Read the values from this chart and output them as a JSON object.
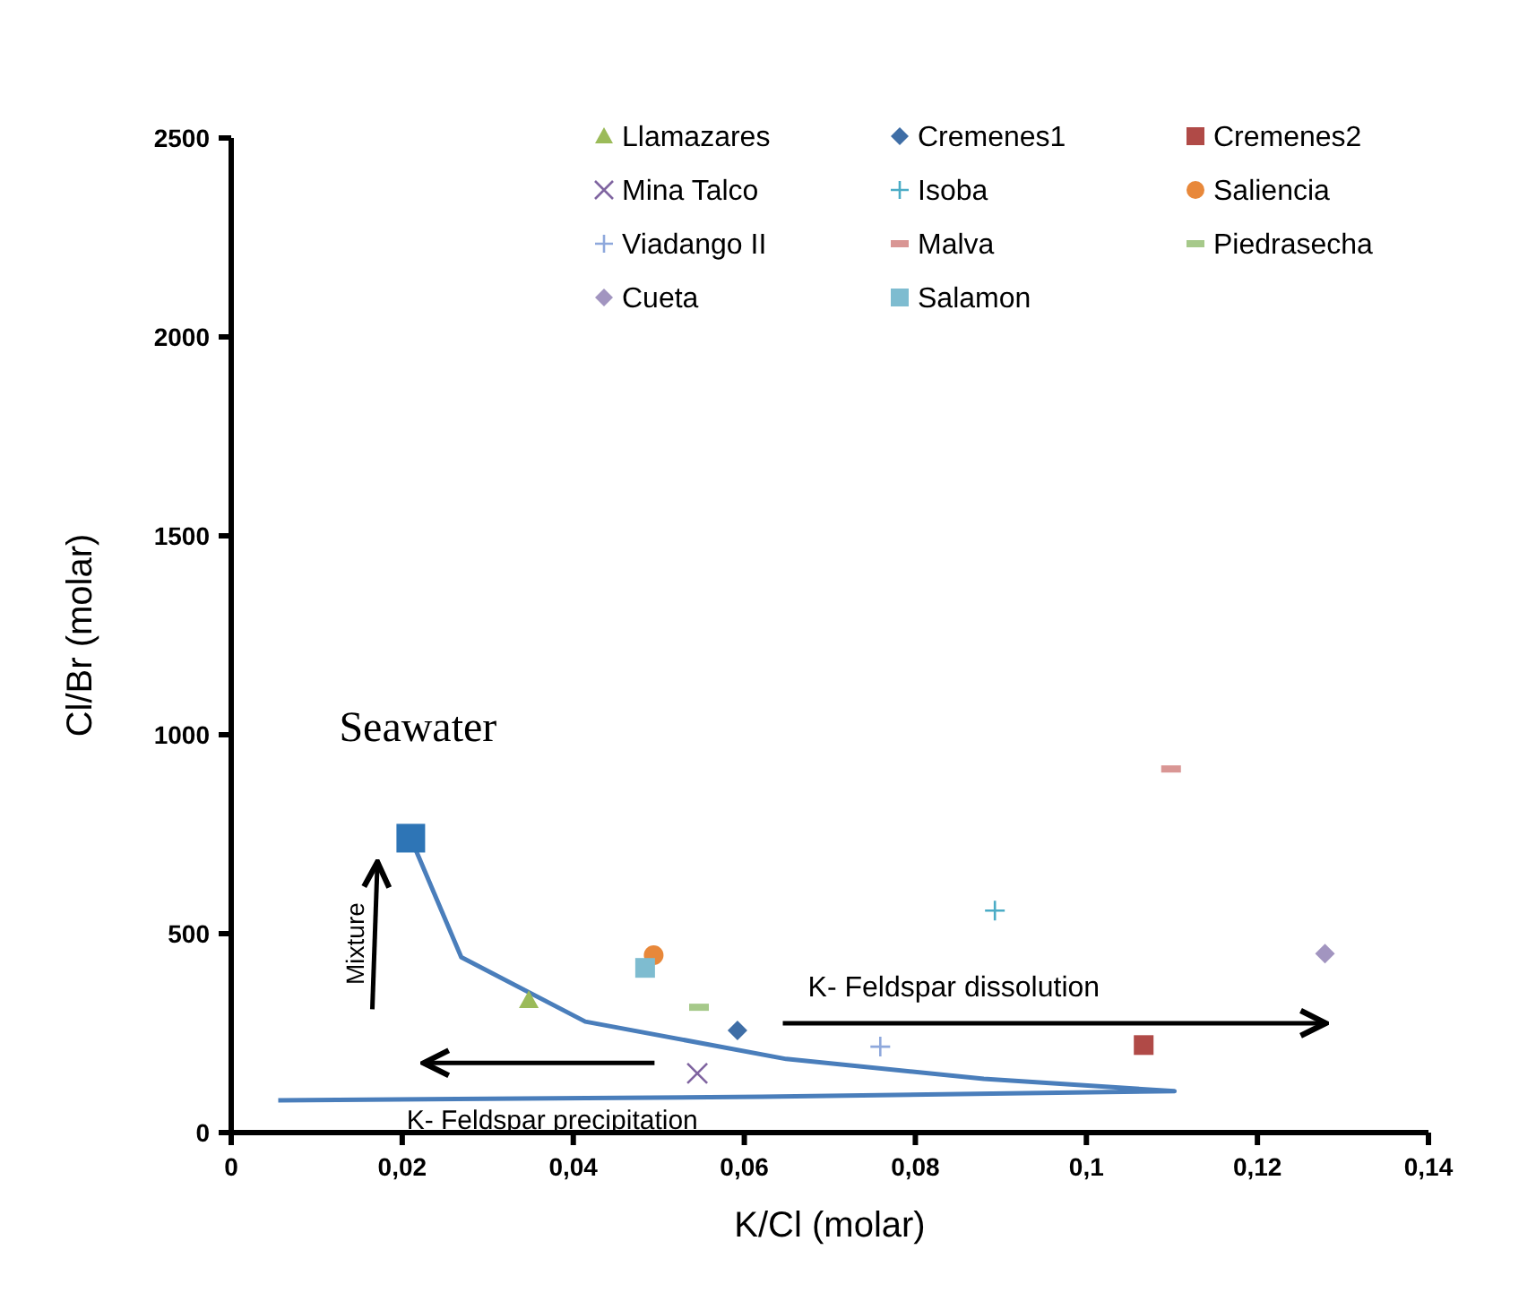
{
  "chart_data": {
    "type": "scatter",
    "xlabel": "K/Cl (molar)",
    "ylabel": "Cl/Br (molar)",
    "xlim": [
      0,
      0.14
    ],
    "xticks": [
      0,
      {
        "value": 0.02,
        "label": "0,02"
      },
      {
        "value": 0.04,
        "label": "0,04"
      },
      {
        "value": 0.06,
        "label": "0,06"
      },
      {
        "value": 0.08,
        "label": "0,08"
      },
      {
        "value": 0.1,
        "label": "0,1"
      },
      {
        "value": 0.12,
        "label": "0,12"
      },
      {
        "value": 0.14,
        "label": "0,14"
      }
    ],
    "ylim": [
      0,
      2500
    ],
    "yticks": [
      0,
      500,
      1000,
      1500,
      2000,
      2500
    ],
    "grid": false,
    "legend": "top right",
    "series": [
      {
        "type": "line",
        "color": "#4a7ebb",
        "marker": "none",
        "line_style": "solid",
        "x": [
          0.021,
          0.0269,
          0.0414,
          0.0649,
          0.088,
          0.1103,
          0.0621,
          0.0055
        ],
        "values": [
          740,
          441,
          279,
          185,
          135,
          104,
          90,
          81
        ]
      },
      {
        "type": "scatter",
        "color": "#2e75b6",
        "marker": "square",
        "x": [
          0.021
        ],
        "values": [
          740
        ]
      },
      {
        "name": "Llamazares",
        "color": "#9bbb59",
        "marker": "triangle",
        "x": [
          0.0348
        ],
        "values": [
          333
        ]
      },
      {
        "name": "Cremenes1",
        "color": "#3f6ea6",
        "marker": "diamond",
        "x": [
          0.0592
        ],
        "values": [
          257
        ]
      },
      {
        "name": "Cremenes2",
        "color": "#b04a47",
        "marker": "square",
        "x": [
          0.1067
        ],
        "values": [
          220
        ]
      },
      {
        "name": "Mina Talco",
        "color": "#7f64a0",
        "marker": "x",
        "x": [
          0.0545
        ],
        "values": [
          149
        ]
      },
      {
        "name": "Isoba",
        "color": "#4bacc6",
        "marker": "cross",
        "x": [
          0.0893
        ],
        "values": [
          558
        ]
      },
      {
        "name": "Saliencia",
        "color": "#e8883a",
        "marker": "circle",
        "x": [
          0.0494
        ],
        "values": [
          446
        ]
      },
      {
        "name": "Viadango II",
        "color": "#8ea8dc",
        "marker": "cross",
        "x": [
          0.0759
        ],
        "values": [
          216
        ]
      },
      {
        "name": "Malva",
        "color": "#d99694",
        "x": [
          0.1099
        ],
        "values": [
          914
        ]
      },
      {
        "name": "Piedrasecha",
        "color": "#a6c98a",
        "x": [
          0.0547
        ],
        "values": [
          315
        ]
      },
      {
        "name": "Cueta",
        "color": "#a295c0",
        "marker": "diamond",
        "x": [
          0.1279
        ],
        "values": [
          450
        ]
      },
      {
        "name": "Salamon",
        "color": "#7ebcd0",
        "marker": "square",
        "x": [
          0.0484
        ],
        "values": [
          414
        ]
      }
    ],
    "annotations": [
      {
        "text": "Seawater",
        "x": 0.021,
        "y": 740
      },
      "Mixture",
      "K- Feldspar dissolution",
      "K- Feldspar precipitation"
    ]
  }
}
